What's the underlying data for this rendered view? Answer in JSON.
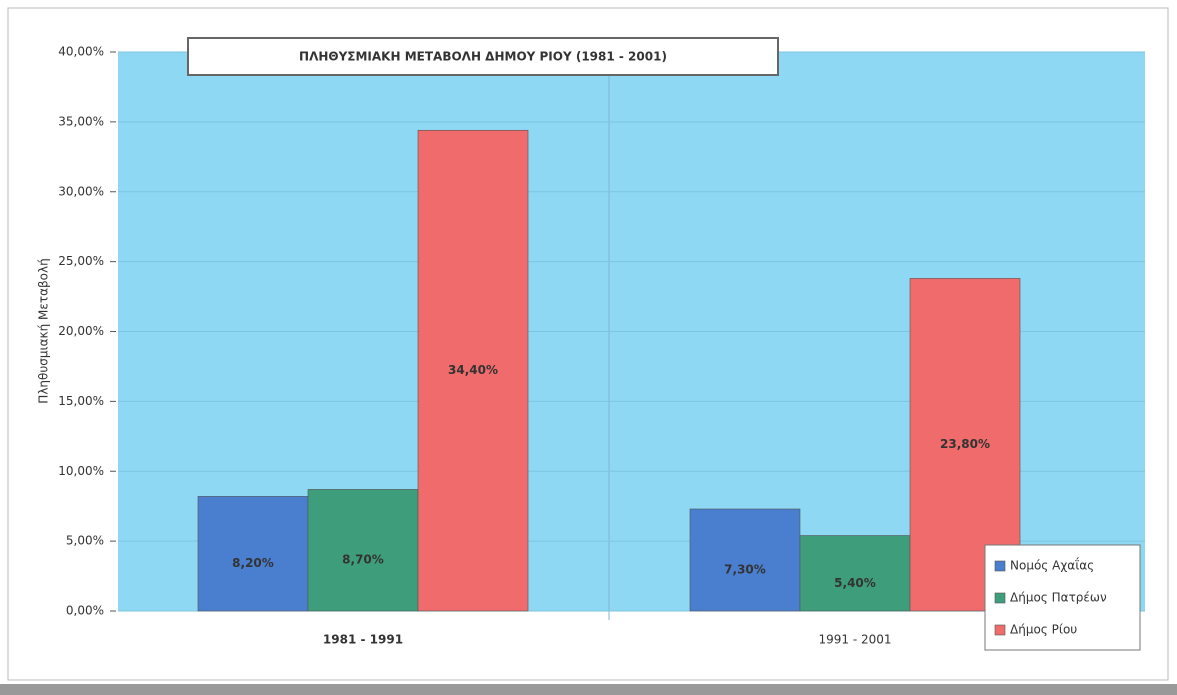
{
  "chart_data": {
    "type": "bar",
    "title": "ΠΛΗΘΥΣΜΙΑΚΗ ΜΕΤΑΒΟΛΗ ΔΗΜΟΥ ΡΙΟΥ (1981 - 2001)",
    "y_label": "Πληθυσμιακή Μεταβολή",
    "categories": [
      "1981 - 1991",
      "1991 - 2001"
    ],
    "series": [
      {
        "name": "Νομός Αχαΐας",
        "color": "#4a7fd0",
        "values": [
          8.2,
          7.3
        ],
        "value_labels": [
          "8,20%",
          "7,30%"
        ]
      },
      {
        "name": "Δήμος Πατρέων",
        "color": "#3e9e7c",
        "values": [
          8.7,
          5.4
        ],
        "value_labels": [
          "8,70%",
          "5,40%"
        ]
      },
      {
        "name": "Δήμος Ρίου",
        "color": "#f06b6b",
        "values": [
          34.4,
          23.8
        ],
        "value_labels": [
          "34,40%",
          "23,80%"
        ]
      }
    ],
    "ylim": [
      0,
      40
    ],
    "yticks": [
      {
        "value": 0,
        "label": "0,00%"
      },
      {
        "value": 5,
        "label": "5,00%"
      },
      {
        "value": 10,
        "label": "10,00%"
      },
      {
        "value": 15,
        "label": "15,00%"
      },
      {
        "value": 20,
        "label": "20,00%"
      },
      {
        "value": 25,
        "label": "25,00%"
      },
      {
        "value": 30,
        "label": "30,00%"
      },
      {
        "value": 35,
        "label": "35,00%"
      },
      {
        "value": 40,
        "label": "40,00%"
      }
    ],
    "grid": true,
    "legend": "lower right"
  }
}
